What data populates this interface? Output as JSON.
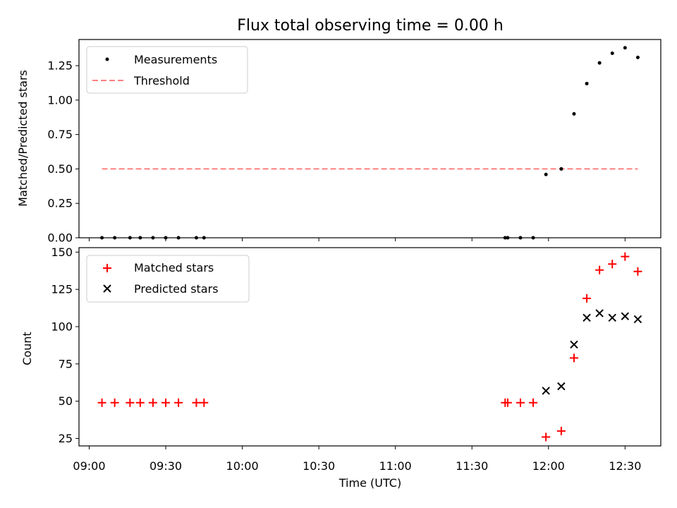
{
  "chart_data": [
    {
      "type": "scatter",
      "title": "Flux total observing time = 0.00 h",
      "xlabel": "",
      "ylabel": "Matched/Predicted stars",
      "ylim": [
        0,
        1.44
      ],
      "yticks": [
        "0.00",
        "0.25",
        "0.50",
        "0.75",
        "1.00",
        "1.25"
      ],
      "legend": {
        "position": "top-left",
        "entries": [
          {
            "label": "Measurements",
            "marker": "dot",
            "color": "#000000"
          },
          {
            "label": "Threshold",
            "marker": "dashed-line",
            "color": "#ff7f7f"
          }
        ]
      },
      "threshold": {
        "y": 0.5,
        "x_start": "09:05",
        "x_end": "12:35"
      },
      "series": [
        {
          "name": "Measurements",
          "x": [
            "09:05",
            "09:10",
            "09:16",
            "09:20",
            "09:25",
            "09:30",
            "09:35",
            "09:42",
            "09:45",
            "11:43",
            "11:44",
            "11:49",
            "11:54",
            "11:59",
            "12:05",
            "12:10",
            "12:15",
            "12:20",
            "12:25",
            "12:30",
            "12:35"
          ],
          "values": [
            0,
            0,
            0,
            0,
            0,
            0,
            0,
            0,
            0,
            0,
            0,
            0,
            0,
            0.46,
            0.5,
            0.9,
            1.12,
            1.27,
            1.34,
            1.38,
            1.31
          ]
        }
      ]
    },
    {
      "type": "scatter",
      "title": "",
      "xlabel": "Time (UTC)",
      "ylabel": "Count",
      "xlim": [
        "08:56",
        "12:44"
      ],
      "xticks": [
        "09:00",
        "09:30",
        "10:00",
        "10:30",
        "11:00",
        "11:30",
        "12:00",
        "12:30"
      ],
      "ylim": [
        20,
        153
      ],
      "yticks": [
        "25",
        "50",
        "75",
        "100",
        "125",
        "150"
      ],
      "legend": {
        "position": "top-left",
        "entries": [
          {
            "label": "Matched stars",
            "marker": "plus",
            "color": "#ff0000"
          },
          {
            "label": "Predicted stars",
            "marker": "x",
            "color": "#000000"
          }
        ]
      },
      "series": [
        {
          "name": "Matched stars",
          "x": [
            "09:05",
            "09:10",
            "09:16",
            "09:20",
            "09:25",
            "09:30",
            "09:35",
            "09:42",
            "09:45",
            "11:43",
            "11:44",
            "11:49",
            "11:54",
            "11:59",
            "12:05",
            "12:10",
            "12:15",
            "12:20",
            "12:25",
            "12:30",
            "12:35"
          ],
          "values": [
            49,
            49,
            49,
            49,
            49,
            49,
            49,
            49,
            49,
            49,
            49,
            49,
            49,
            26,
            30,
            79,
            119,
            138,
            142,
            147,
            137
          ]
        },
        {
          "name": "Predicted stars",
          "x": [
            "11:59",
            "12:05",
            "12:10",
            "12:15",
            "12:20",
            "12:25",
            "12:30",
            "12:35"
          ],
          "values": [
            57,
            60,
            88,
            106,
            109,
            106,
            107,
            105
          ]
        }
      ]
    }
  ]
}
